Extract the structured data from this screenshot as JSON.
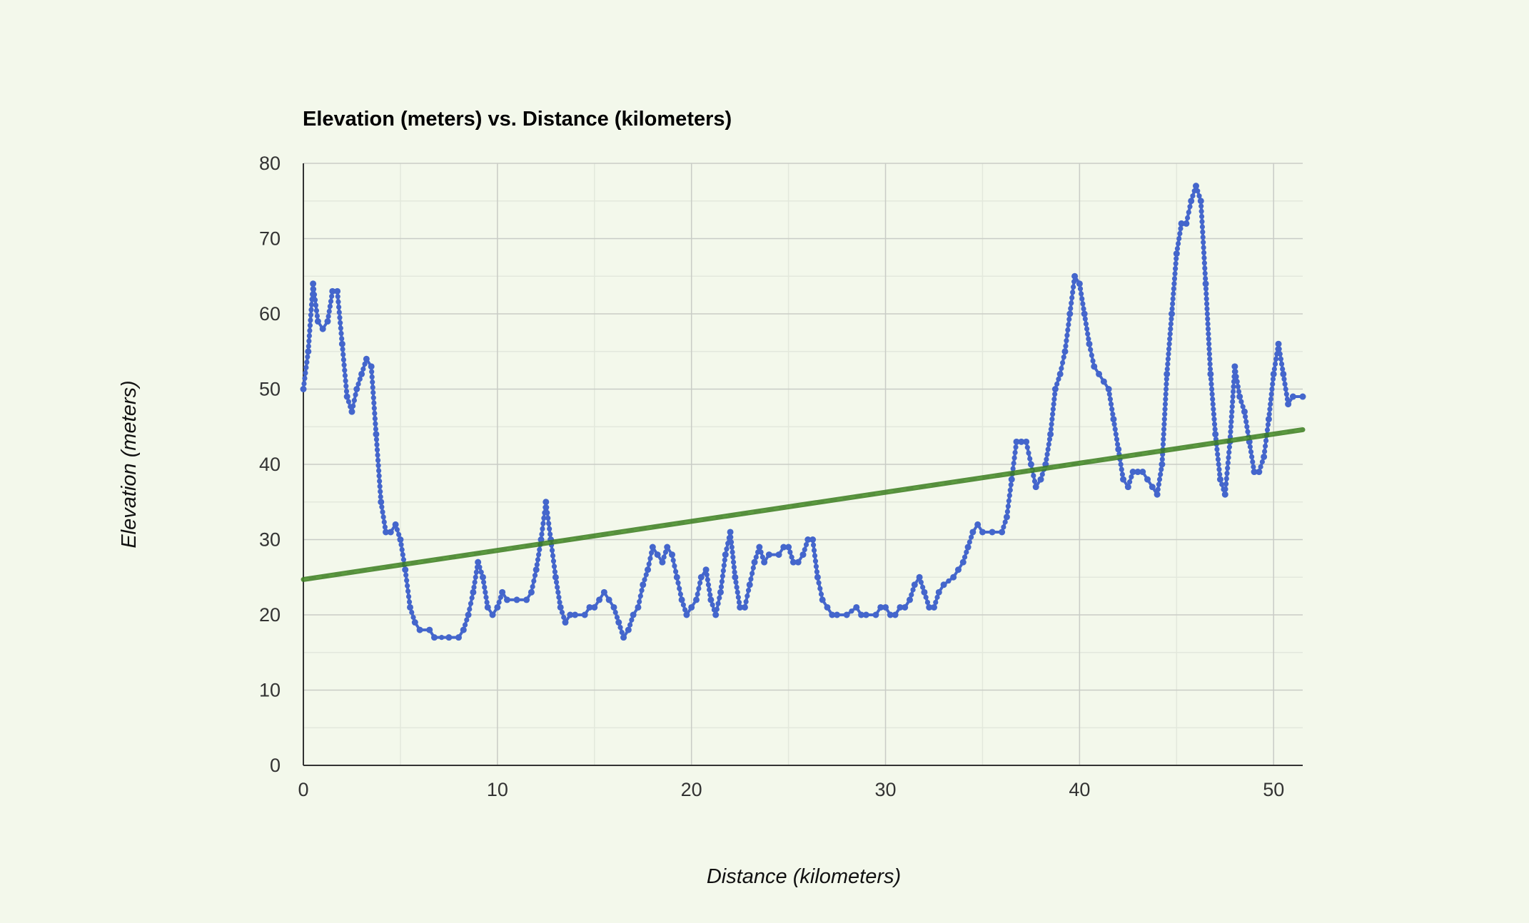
{
  "chart_data": {
    "type": "line",
    "title": "Elevation (meters) vs. Distance (kilometers)",
    "xlabel": "Distance (kilometers)",
    "ylabel": "Elevation (meters)",
    "xlim": [
      0,
      51.5
    ],
    "ylim": [
      0,
      80
    ],
    "x_ticks": [
      "0",
      "10",
      "20",
      "30",
      "40",
      "50"
    ],
    "y_ticks": [
      "0",
      "10",
      "20",
      "30",
      "40",
      "50",
      "60",
      "70",
      "80"
    ],
    "grid": true,
    "legend": "none",
    "series": [
      {
        "color": "#4466cc",
        "markers": true,
        "points": [
          [
            0,
            50
          ],
          [
            0.25,
            55
          ],
          [
            0.5,
            64
          ],
          [
            0.75,
            59
          ],
          [
            1,
            58
          ],
          [
            1.25,
            59
          ],
          [
            1.5,
            63
          ],
          [
            1.75,
            63
          ],
          [
            2,
            56
          ],
          [
            2.25,
            49
          ],
          [
            2.5,
            47
          ],
          [
            2.75,
            50
          ],
          [
            3,
            52
          ],
          [
            3.25,
            54
          ],
          [
            3.5,
            53
          ],
          [
            3.75,
            44
          ],
          [
            4,
            35
          ],
          [
            4.25,
            31
          ],
          [
            4.5,
            31
          ],
          [
            4.75,
            32
          ],
          [
            5,
            30
          ],
          [
            5.25,
            26
          ],
          [
            5.5,
            21
          ],
          [
            5.75,
            19
          ],
          [
            6,
            18
          ],
          [
            6.5,
            18
          ],
          [
            6.75,
            17
          ],
          [
            7.5,
            17
          ],
          [
            8,
            17
          ],
          [
            8.25,
            18
          ],
          [
            8.5,
            20
          ],
          [
            8.75,
            23
          ],
          [
            9,
            27
          ],
          [
            9.25,
            25
          ],
          [
            9.5,
            21
          ],
          [
            9.75,
            20
          ],
          [
            10,
            21
          ],
          [
            10.25,
            23
          ],
          [
            10.5,
            22
          ],
          [
            11,
            22
          ],
          [
            11.5,
            22
          ],
          [
            11.75,
            23
          ],
          [
            12,
            26
          ],
          [
            12.25,
            30
          ],
          [
            12.5,
            35
          ],
          [
            12.75,
            30
          ],
          [
            13,
            25
          ],
          [
            13.25,
            21
          ],
          [
            13.5,
            19
          ],
          [
            13.75,
            20
          ],
          [
            14,
            20
          ],
          [
            14.5,
            20
          ],
          [
            14.75,
            21
          ],
          [
            15,
            21
          ],
          [
            15.25,
            22
          ],
          [
            15.5,
            23
          ],
          [
            15.75,
            22
          ],
          [
            16,
            21
          ],
          [
            16.25,
            19
          ],
          [
            16.5,
            17
          ],
          [
            16.75,
            18
          ],
          [
            17,
            20
          ],
          [
            17.25,
            21
          ],
          [
            17.5,
            24
          ],
          [
            17.75,
            26
          ],
          [
            18,
            29
          ],
          [
            18.25,
            28
          ],
          [
            18.5,
            27
          ],
          [
            18.75,
            29
          ],
          [
            19,
            28
          ],
          [
            19.25,
            25
          ],
          [
            19.5,
            22
          ],
          [
            19.75,
            20
          ],
          [
            20,
            21
          ],
          [
            20.25,
            22
          ],
          [
            20.5,
            25
          ],
          [
            20.75,
            26
          ],
          [
            21,
            22
          ],
          [
            21.25,
            20
          ],
          [
            21.5,
            23
          ],
          [
            21.75,
            28
          ],
          [
            22,
            31
          ],
          [
            22.25,
            25
          ],
          [
            22.5,
            21
          ],
          [
            22.75,
            21
          ],
          [
            23,
            24
          ],
          [
            23.25,
            27
          ],
          [
            23.5,
            29
          ],
          [
            23.75,
            27
          ],
          [
            24,
            28
          ],
          [
            24.5,
            28
          ],
          [
            24.75,
            29
          ],
          [
            25,
            29
          ],
          [
            25.25,
            27
          ],
          [
            25.5,
            27
          ],
          [
            25.75,
            28
          ],
          [
            26,
            30
          ],
          [
            26.25,
            30
          ],
          [
            26.5,
            25
          ],
          [
            26.75,
            22
          ],
          [
            27,
            21
          ],
          [
            27.25,
            20
          ],
          [
            27.5,
            20
          ],
          [
            28,
            20
          ],
          [
            28.5,
            21
          ],
          [
            28.75,
            20
          ],
          [
            29,
            20
          ],
          [
            29.5,
            20
          ],
          [
            29.75,
            21
          ],
          [
            30,
            21
          ],
          [
            30.25,
            20
          ],
          [
            30.5,
            20
          ],
          [
            30.75,
            21
          ],
          [
            31,
            21
          ],
          [
            31.25,
            22
          ],
          [
            31.5,
            24
          ],
          [
            31.75,
            25
          ],
          [
            32,
            23
          ],
          [
            32.25,
            21
          ],
          [
            32.5,
            21
          ],
          [
            32.75,
            23
          ],
          [
            33,
            24
          ],
          [
            33.5,
            25
          ],
          [
            33.75,
            26
          ],
          [
            34,
            27
          ],
          [
            34.25,
            29
          ],
          [
            34.5,
            31
          ],
          [
            34.75,
            32
          ],
          [
            35,
            31
          ],
          [
            35.5,
            31
          ],
          [
            36,
            31
          ],
          [
            36.25,
            33
          ],
          [
            36.5,
            38
          ],
          [
            36.75,
            43
          ],
          [
            37,
            43
          ],
          [
            37.25,
            43
          ],
          [
            37.5,
            40
          ],
          [
            37.75,
            37
          ],
          [
            38,
            38
          ],
          [
            38.25,
            40
          ],
          [
            38.5,
            44
          ],
          [
            38.75,
            50
          ],
          [
            39,
            52
          ],
          [
            39.25,
            55
          ],
          [
            39.5,
            60
          ],
          [
            39.75,
            65
          ],
          [
            40,
            64
          ],
          [
            40.25,
            60
          ],
          [
            40.5,
            56
          ],
          [
            40.75,
            53
          ],
          [
            41,
            52
          ],
          [
            41.25,
            51
          ],
          [
            41.5,
            50
          ],
          [
            41.75,
            46
          ],
          [
            42,
            42
          ],
          [
            42.25,
            38
          ],
          [
            42.5,
            37
          ],
          [
            42.75,
            39
          ],
          [
            43,
            39
          ],
          [
            43.25,
            39
          ],
          [
            43.5,
            38
          ],
          [
            43.75,
            37
          ],
          [
            44,
            36
          ],
          [
            44.25,
            40
          ],
          [
            44.5,
            52
          ],
          [
            44.75,
            60
          ],
          [
            45,
            68
          ],
          [
            45.25,
            72
          ],
          [
            45.5,
            72
          ],
          [
            45.75,
            75
          ],
          [
            46,
            77
          ],
          [
            46.25,
            75
          ],
          [
            46.5,
            64
          ],
          [
            46.75,
            52
          ],
          [
            47,
            44
          ],
          [
            47.25,
            38
          ],
          [
            47.5,
            36
          ],
          [
            47.75,
            43
          ],
          [
            48,
            53
          ],
          [
            48.25,
            49
          ],
          [
            48.5,
            47
          ],
          [
            48.75,
            43
          ],
          [
            49,
            39
          ],
          [
            49.25,
            39
          ],
          [
            49.5,
            41
          ],
          [
            49.75,
            46
          ],
          [
            50,
            52
          ],
          [
            50.25,
            56
          ],
          [
            50.5,
            52
          ],
          [
            50.75,
            48
          ],
          [
            51,
            49
          ],
          [
            51.5,
            49
          ]
        ]
      },
      {
        "type": "trendline",
        "color": "#3a7d1e",
        "points": [
          [
            0,
            24.7
          ],
          [
            51.5,
            44.6
          ]
        ]
      }
    ]
  }
}
